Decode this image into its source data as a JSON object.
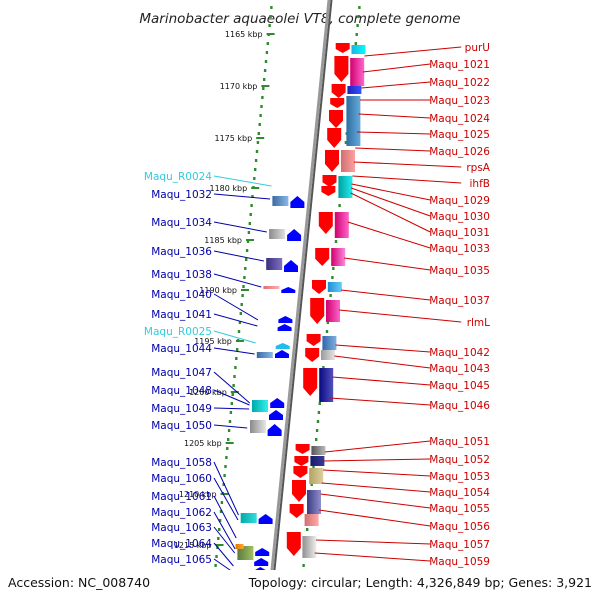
{
  "title": "Marinobacter aquaeolei VT8, complete genome",
  "footer": {
    "accession": "Accession: NC_008740",
    "summary": "Topology: circular; Length: 4,326,849 bp; Genes: 3,921"
  },
  "colors": {
    "forward": "#ff0000",
    "reverse": "#0000ff",
    "rna": "#00ccff",
    "label_forward": "#cc0000",
    "label_reverse": "#0000aa",
    "label_rna": "#33ccdd",
    "backbone": "#999999",
    "tick": "#2e8b2e"
  },
  "scale_labels": [
    "1165 kbp",
    "1170 kbp",
    "1175 kbp",
    "1180 kbp",
    "1185 kbp",
    "1190 kbp",
    "1195 kbp",
    "1200 kbp",
    "1205 kbp",
    "1210 kbp",
    "1215 kbp"
  ],
  "left_labels": [
    {
      "text": "Maqu_R0024",
      "type": "rna"
    },
    {
      "text": "Maqu_1032",
      "type": "gene"
    },
    {
      "text": "Maqu_1034",
      "type": "gene"
    },
    {
      "text": "Maqu_1036",
      "type": "gene"
    },
    {
      "text": "Maqu_1038",
      "type": "gene"
    },
    {
      "text": "Maqu_1040",
      "type": "gene"
    },
    {
      "text": "Maqu_1041",
      "type": "gene"
    },
    {
      "text": "Maqu_R0025",
      "type": "rna"
    },
    {
      "text": "Maqu_1044",
      "type": "gene"
    },
    {
      "text": "Maqu_1047",
      "type": "gene"
    },
    {
      "text": "Maqu_1048",
      "type": "gene"
    },
    {
      "text": "Maqu_1049",
      "type": "gene"
    },
    {
      "text": "Maqu_1050",
      "type": "gene"
    },
    {
      "text": "Maqu_1058",
      "type": "gene"
    },
    {
      "text": "Maqu_1060",
      "type": "gene"
    },
    {
      "text": "Maqu_1061",
      "type": "gene"
    },
    {
      "text": "Maqu_1062",
      "type": "gene"
    },
    {
      "text": "Maqu_1063",
      "type": "gene"
    },
    {
      "text": "Maqu_1064",
      "type": "gene"
    },
    {
      "text": "Maqu_1065",
      "type": "gene"
    }
  ],
  "right_labels": [
    "purU",
    "Maqu_1021",
    "Maqu_1022",
    "Maqu_1023",
    "Maqu_1024",
    "Maqu_1025",
    "Maqu_1026",
    "rpsA",
    "ihfB",
    "Maqu_1029",
    "Maqu_1030",
    "Maqu_1031",
    "Maqu_1033",
    "Maqu_1035",
    "Maqu_1037",
    "rlmL",
    "Maqu_1042",
    "Maqu_1043",
    "Maqu_1045",
    "Maqu_1046",
    "Maqu_1051",
    "Maqu_1052",
    "Maqu_1053",
    "Maqu_1054",
    "Maqu_1055",
    "Maqu_1056",
    "Maqu_1057",
    "Maqu_1059"
  ]
}
